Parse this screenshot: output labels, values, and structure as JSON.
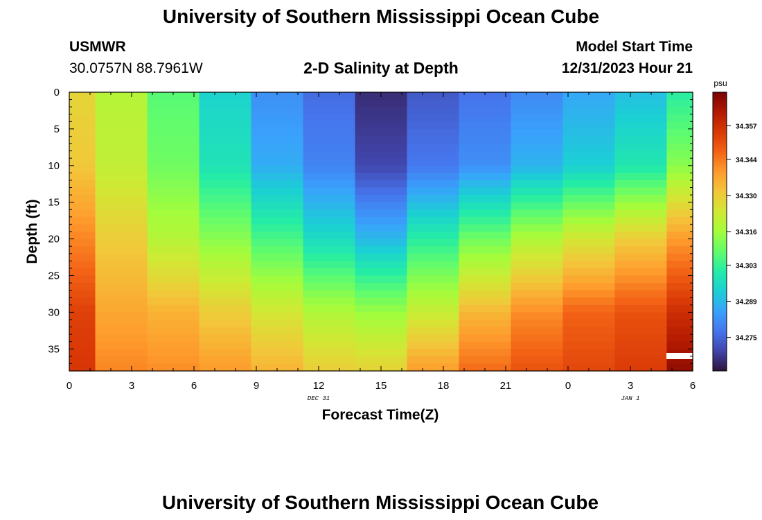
{
  "header": {
    "title": "University of Southern Mississippi Ocean Cube",
    "station": "USMWR",
    "coords": "30.0757N  88.7961W",
    "subtitle": "2-D Salinity at Depth",
    "model_start_label": "Model Start Time",
    "model_start_value": "12/31/2023 Hour 21"
  },
  "footer": {
    "title": "University of Southern Mississippi Ocean Cube"
  },
  "chart_data": {
    "type": "heatmap",
    "xlabel": "Forecast Time(Z)",
    "ylabel": "Depth (ft)",
    "x_ticks": [
      "0",
      "3",
      "6",
      "9",
      "12",
      "15",
      "18",
      "21",
      "0",
      "3",
      "6"
    ],
    "x_day_labels": [
      {
        "text": "DEC 31",
        "at_hours": 12
      },
      {
        "text": "JAN 1",
        "at_hours": 27
      }
    ],
    "xlim_hours": [
      0,
      30
    ],
    "y_ticks": [
      0,
      5,
      10,
      15,
      20,
      25,
      30,
      35
    ],
    "ylim": [
      0,
      38
    ],
    "y_inverted": true,
    "colorbar": {
      "unit": "psu",
      "tick_labels": [
        "34.357",
        "34.344",
        "34.330",
        "34.316",
        "34.303",
        "34.289",
        "34.275"
      ],
      "range": [
        34.262,
        34.37
      ],
      "colors": [
        "#30123b",
        "#4145ab",
        "#4675ed",
        "#39a2fc",
        "#1bcfd4",
        "#24eca6",
        "#61fc6c",
        "#a4fc3b",
        "#d1e834",
        "#f3c63a",
        "#fe9b2d",
        "#f36315",
        "#d93806",
        "#b11901",
        "#7a0403"
      ]
    },
    "column_edges_hours": [
      0,
      1.25,
      3.75,
      6.25,
      8.75,
      11.25,
      13.75,
      16.25,
      18.75,
      21.25,
      23.75,
      26.25,
      28.75,
      30
    ],
    "depth_levels_ft": [
      0,
      10,
      20,
      30,
      38
    ],
    "salinity_psu": [
      [
        34.328,
        34.331,
        34.342,
        34.353,
        34.355
      ],
      [
        34.319,
        34.321,
        34.33,
        34.337,
        34.342
      ],
      [
        34.307,
        34.31,
        34.319,
        34.335,
        34.341
      ],
      [
        34.294,
        34.298,
        34.313,
        34.33,
        34.339
      ],
      [
        34.282,
        34.287,
        34.305,
        34.324,
        34.335
      ],
      [
        34.276,
        34.28,
        34.296,
        34.318,
        34.33
      ],
      [
        34.266,
        34.27,
        34.289,
        34.315,
        34.329
      ],
      [
        34.273,
        34.278,
        34.301,
        34.322,
        34.339
      ],
      [
        34.277,
        34.282,
        34.31,
        34.334,
        34.346
      ],
      [
        34.281,
        34.288,
        34.318,
        34.341,
        34.35
      ],
      [
        34.286,
        34.293,
        34.324,
        34.347,
        34.352
      ],
      [
        34.29,
        34.299,
        34.33,
        34.35,
        34.354
      ],
      [
        34.301,
        34.313,
        34.339,
        34.357,
        34.367
      ]
    ]
  }
}
